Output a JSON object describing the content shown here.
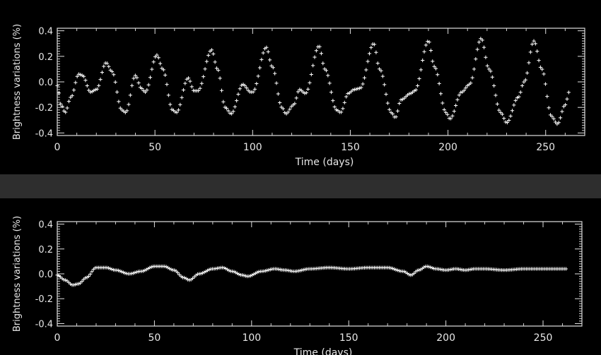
{
  "chart_data": [
    {
      "type": "scatter",
      "marker": "plus",
      "xlabel": "Time (days)",
      "ylabel": "Brightness variations (%)",
      "xlim": [
        0,
        270
      ],
      "ylim": [
        -0.42,
        0.42
      ],
      "xticks": [
        0,
        50,
        100,
        150,
        200,
        250
      ],
      "yticks": [
        -0.4,
        -0.2,
        0.0,
        0.2,
        0.4
      ],
      "ytick_labels": [
        "-0.4",
        "-0.2",
        "0.0",
        "0.2",
        "0.4"
      ],
      "xtick_labels": [
        "0",
        "50",
        "100",
        "150",
        "200",
        "250"
      ],
      "x_step": 0.85,
      "x_end": 262,
      "control_points": [
        [
          0,
          -0.03
        ],
        [
          2,
          -0.18
        ],
        [
          4,
          -0.24
        ],
        [
          7,
          -0.12
        ],
        [
          11,
          0.06
        ],
        [
          13,
          0.05
        ],
        [
          17,
          -0.08
        ],
        [
          20,
          -0.06
        ],
        [
          25,
          0.15
        ],
        [
          28,
          0.08
        ],
        [
          33,
          -0.22
        ],
        [
          35,
          -0.24
        ],
        [
          40,
          0.05
        ],
        [
          43,
          -0.05
        ],
        [
          45,
          -0.08
        ],
        [
          51,
          0.21
        ],
        [
          54,
          0.1
        ],
        [
          59,
          -0.22
        ],
        [
          61,
          -0.24
        ],
        [
          67,
          0.03
        ],
        [
          70,
          -0.07
        ],
        [
          72,
          -0.07
        ],
        [
          79,
          0.25
        ],
        [
          82,
          0.1
        ],
        [
          86,
          -0.2
        ],
        [
          89,
          -0.25
        ],
        [
          95,
          -0.02
        ],
        [
          99,
          -0.08
        ],
        [
          100,
          -0.08
        ],
        [
          107,
          0.27
        ],
        [
          110,
          0.12
        ],
        [
          115,
          -0.2
        ],
        [
          117,
          -0.25
        ],
        [
          121,
          -0.18
        ],
        [
          124,
          -0.06
        ],
        [
          127,
          -0.09
        ],
        [
          134,
          0.28
        ],
        [
          137,
          0.1
        ],
        [
          143,
          -0.22
        ],
        [
          145,
          -0.24
        ],
        [
          149,
          -0.09
        ],
        [
          152,
          -0.06
        ],
        [
          155,
          -0.05
        ],
        [
          162,
          0.3
        ],
        [
          165,
          0.1
        ],
        [
          171,
          -0.24
        ],
        [
          173,
          -0.28
        ],
        [
          176,
          -0.14
        ],
        [
          181,
          -0.09
        ],
        [
          183,
          -0.07
        ],
        [
          190,
          0.32
        ],
        [
          193,
          0.12
        ],
        [
          199,
          -0.24
        ],
        [
          201,
          -0.29
        ],
        [
          207,
          -0.08
        ],
        [
          211,
          -0.02
        ],
        [
          217,
          0.34
        ],
        [
          221,
          0.1
        ],
        [
          227,
          -0.24
        ],
        [
          230,
          -0.32
        ],
        [
          236,
          -0.12
        ],
        [
          239,
          0.0
        ],
        [
          244,
          0.32
        ],
        [
          248,
          0.1
        ],
        [
          253,
          -0.27
        ],
        [
          256,
          -0.33
        ],
        [
          260,
          -0.18
        ],
        [
          262,
          -0.08
        ]
      ]
    },
    {
      "type": "scatter",
      "marker": "plus",
      "xlabel": "Time (days)",
      "ylabel": "Brightness variations (%)",
      "xlim": [
        0,
        270
      ],
      "ylim": [
        -0.42,
        0.42
      ],
      "xticks": [
        0,
        50,
        100,
        150,
        200,
        250
      ],
      "yticks": [
        -0.4,
        -0.2,
        0.0,
        0.2,
        0.4
      ],
      "ytick_labels": [
        "-0.4",
        "-0.2",
        "0.0",
        "0.2",
        "0.4"
      ],
      "xtick_labels": [
        "0",
        "50",
        "100",
        "150",
        "200",
        "250"
      ],
      "x_step": 0.85,
      "x_end": 262,
      "control_points": [
        [
          0,
          -0.01
        ],
        [
          4,
          -0.05
        ],
        [
          8,
          -0.09
        ],
        [
          11,
          -0.08
        ],
        [
          15,
          -0.03
        ],
        [
          20,
          0.05
        ],
        [
          25,
          0.05
        ],
        [
          30,
          0.03
        ],
        [
          37,
          0.0
        ],
        [
          43,
          0.02
        ],
        [
          50,
          0.06
        ],
        [
          55,
          0.06
        ],
        [
          60,
          0.03
        ],
        [
          65,
          -0.03
        ],
        [
          68,
          -0.05
        ],
        [
          73,
          0.0
        ],
        [
          80,
          0.04
        ],
        [
          85,
          0.05
        ],
        [
          90,
          0.02
        ],
        [
          95,
          -0.01
        ],
        [
          98,
          -0.02
        ],
        [
          105,
          0.02
        ],
        [
          112,
          0.04
        ],
        [
          117,
          0.03
        ],
        [
          122,
          0.02
        ],
        [
          130,
          0.04
        ],
        [
          140,
          0.05
        ],
        [
          150,
          0.04
        ],
        [
          160,
          0.05
        ],
        [
          170,
          0.05
        ],
        [
          178,
          0.02
        ],
        [
          182,
          -0.01
        ],
        [
          186,
          0.03
        ],
        [
          190,
          0.06
        ],
        [
          195,
          0.04
        ],
        [
          200,
          0.03
        ],
        [
          205,
          0.04
        ],
        [
          210,
          0.03
        ],
        [
          215,
          0.04
        ],
        [
          220,
          0.04
        ],
        [
          230,
          0.03
        ],
        [
          240,
          0.04
        ],
        [
          250,
          0.04
        ],
        [
          262,
          0.04
        ]
      ]
    }
  ]
}
